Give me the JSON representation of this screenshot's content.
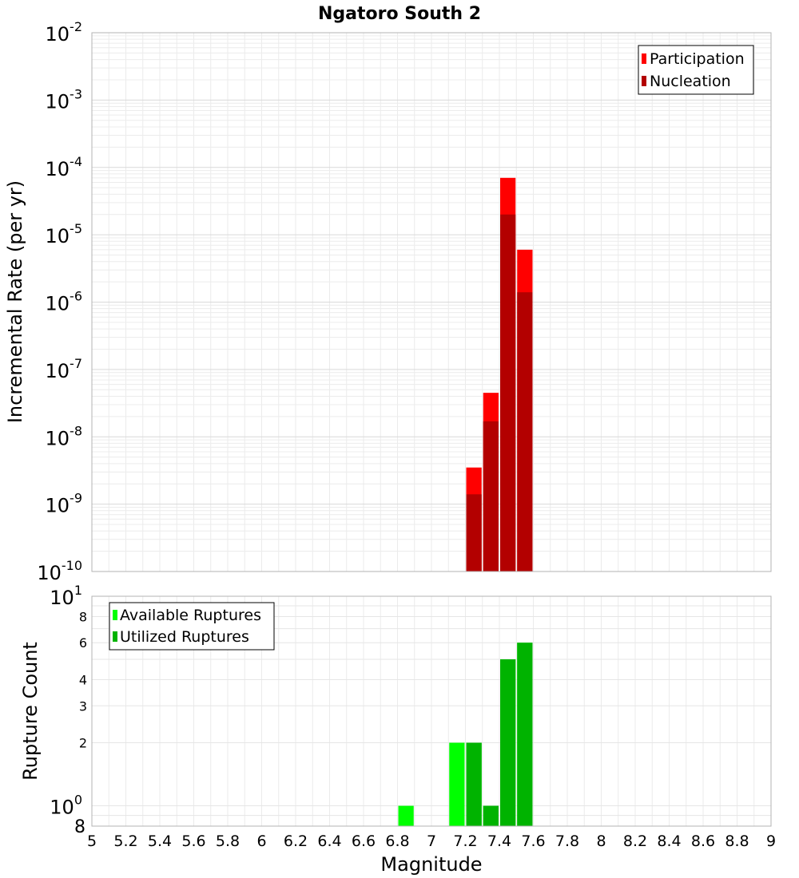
{
  "chart_data": [
    {
      "type": "bar",
      "title": "Ngatoro South 2",
      "xlabel": "Magnitude",
      "ylabel": "Incremental Rate (per yr)",
      "yscale": "log",
      "xlim": [
        5,
        9
      ],
      "ylim": [
        1e-10,
        0.01
      ],
      "y_ticks": [
        {
          "base": "10",
          "exp": "-2"
        },
        {
          "base": "10",
          "exp": "-3"
        },
        {
          "base": "10",
          "exp": "-4"
        },
        {
          "base": "10",
          "exp": "-5"
        },
        {
          "base": "10",
          "exp": "-6"
        },
        {
          "base": "10",
          "exp": "-7"
        },
        {
          "base": "10",
          "exp": "-8"
        },
        {
          "base": "10",
          "exp": "-9"
        },
        {
          "base": "10",
          "exp": "-10"
        }
      ],
      "x": [
        7.25,
        7.35,
        7.45,
        7.55
      ],
      "series": [
        {
          "name": "Participation",
          "color": "#ff0000",
          "values": [
            3.5e-09,
            4.5e-08,
            7e-05,
            6e-06
          ]
        },
        {
          "name": "Nucleation",
          "color": "#b30000",
          "values": [
            1.4e-09,
            1.7e-08,
            2e-05,
            1.4e-06
          ]
        }
      ],
      "legend": [
        "Participation",
        "Nucleation"
      ],
      "legend_position": "top-right",
      "grid": true
    },
    {
      "type": "bar",
      "ylabel": "Rupture Count",
      "xlabel": "Magnitude",
      "yscale": "log",
      "xlim": [
        5,
        9
      ],
      "ylim": [
        0.8,
        10
      ],
      "x_ticks": [
        "5",
        "5.2",
        "5.4",
        "5.6",
        "5.8",
        "6",
        "6.2",
        "6.4",
        "6.6",
        "6.8",
        "7",
        "7.2",
        "7.4",
        "7.6",
        "7.8",
        "8",
        "8.2",
        "8.4",
        "8.6",
        "8.8",
        "9"
      ],
      "y_major_ticks": [
        {
          "base": "10",
          "exp": "1"
        },
        {
          "base": "10",
          "exp": "0"
        }
      ],
      "y_minor_ticks": [
        "8",
        "6",
        "4",
        "3",
        "2",
        "8"
      ],
      "series": [
        {
          "name": "Available Ruptures",
          "color": "#00ff00",
          "x": [
            6.85,
            7.15,
            7.25,
            7.35,
            7.45,
            7.55
          ],
          "values": [
            1,
            2,
            2,
            1,
            5,
            6
          ]
        },
        {
          "name": "Utilized Ruptures",
          "color": "#00b300",
          "x": [
            7.25,
            7.35,
            7.45,
            7.55
          ],
          "values": [
            2,
            1,
            5,
            6
          ]
        }
      ],
      "legend": [
        "Available Ruptures",
        "Utilized Ruptures"
      ],
      "legend_position": "top-left",
      "grid": true
    }
  ]
}
